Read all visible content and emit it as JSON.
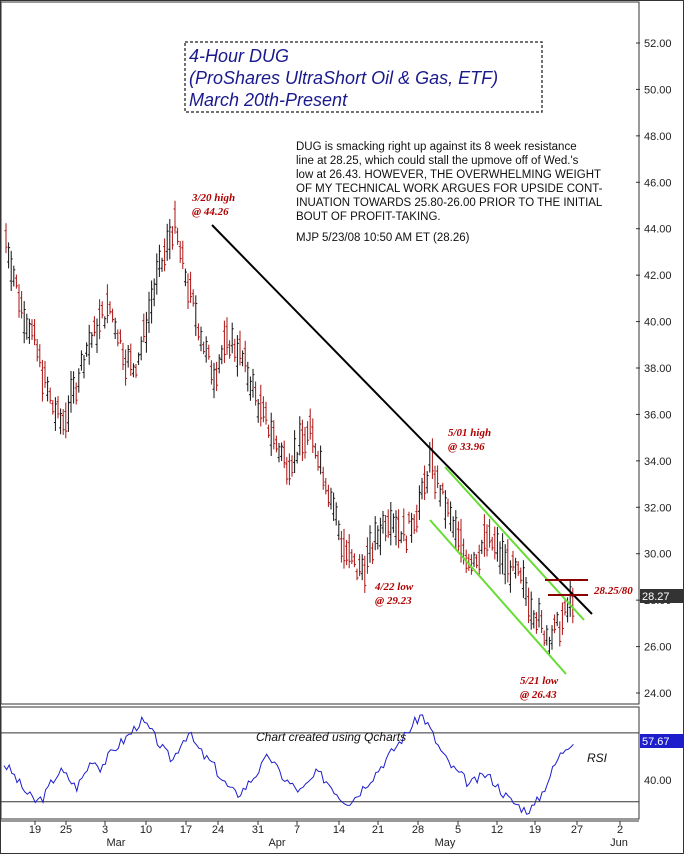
{
  "chart_data": [
    {
      "type": "candlestick",
      "title": [
        "4-Hour DUG",
        "(ProShares UltraShort Oil & Gas, ETF)",
        "March 20th-Present"
      ],
      "y_ticks": [
        "24.00",
        "26.00",
        "28.00",
        "30.00",
        "32.00",
        "34.00",
        "36.00",
        "38.00",
        "40.00",
        "42.00",
        "44.00",
        "46.00",
        "48.00",
        "50.00",
        "52.00"
      ],
      "ylim": [
        23.0,
        53.0
      ],
      "x_day_ticks": [
        "19",
        "25",
        "3",
        "10",
        "17",
        "24",
        "31",
        "7",
        "14",
        "21",
        "28",
        "5",
        "12",
        "19",
        "27",
        "2"
      ],
      "x_month_labels": [
        "Mar",
        "Apr",
        "May",
        "Jun"
      ],
      "price_series_estimate": [
        43.6,
        42.0,
        40.6,
        39.8,
        38.6,
        37.2,
        36.2,
        35.6,
        36.4,
        37.6,
        38.8,
        39.4,
        40.2,
        40.6,
        39.6,
        38.4,
        38.0,
        39.0,
        40.6,
        42.0,
        43.0,
        44.26,
        42.6,
        41.2,
        40.0,
        38.6,
        37.8,
        38.6,
        39.2,
        38.8,
        38.0,
        37.0,
        36.0,
        35.4,
        34.6,
        34.0,
        34.2,
        34.8,
        35.2,
        34.4,
        33.2,
        32.0,
        30.4,
        29.8,
        29.23,
        29.6,
        30.4,
        31.2,
        31.8,
        31.2,
        30.8,
        31.6,
        32.4,
        33.96,
        33.0,
        32.0,
        31.0,
        30.2,
        29.8,
        30.0,
        30.6,
        30.4,
        29.8,
        29.4,
        29.0,
        28.4,
        27.6,
        26.8,
        26.43,
        26.8,
        27.4,
        28.26
      ],
      "current_price": "28.27",
      "resistance_label": "28.25/80",
      "annotations": [
        {
          "text": [
            "3/20 high",
            "@ 44.26"
          ],
          "x_label": "3/20",
          "y": 44.26
        },
        {
          "text": [
            "5/01 high",
            "@ 33.96"
          ],
          "x_label": "5/01",
          "y": 33.96
        },
        {
          "text": [
            "4/22 low",
            "@ 29.23"
          ],
          "x_label": "4/22",
          "y": 29.23
        },
        {
          "text": [
            "5/21 low",
            "@ 26.43"
          ],
          "x_label": "5/21",
          "y": 26.43
        }
      ],
      "commentary": [
        "DUG is smacking right up against its 8 week resistance",
        "line at 28.25, which could stall the upmove off of Wed.'s",
        "low at 26.43. HOWEVER, THE OVERWHELMING WEIGHT",
        "OF MY TECHNICAL WORK ARGUES FOR UPSIDE CONT-",
        "INUATION TOWARDS 25.80-26.00 PRIOR TO THE INITIAL",
        "BOUT OF PROFIT-TAKING.",
        "MJP  5/23/08  10:50 AM ET  (28.26)"
      ]
    },
    {
      "type": "line",
      "name": "RSI",
      "credit": "Chart created using Qcharts",
      "y_ticks": [
        "40.00"
      ],
      "ylim": [
        20,
        85
      ],
      "current_value": "57.67",
      "rsi_series_estimate": [
        52,
        47,
        40,
        34,
        30,
        33,
        42,
        48,
        44,
        38,
        46,
        55,
        50,
        56,
        62,
        66,
        71,
        77,
        73,
        66,
        59,
        54,
        64,
        70,
        62,
        56,
        52,
        44,
        38,
        34,
        38,
        44,
        50,
        57,
        49,
        43,
        39,
        36,
        41,
        47,
        43,
        38,
        32,
        30,
        34,
        40,
        45,
        51,
        57,
        63,
        69,
        75,
        81,
        73,
        63,
        55,
        49,
        45,
        40,
        43,
        46,
        42,
        36,
        31,
        28,
        25,
        27,
        35,
        45,
        55,
        62,
        66
      ]
    }
  ],
  "colors": {
    "trendline": "#000000",
    "channel": "#66dd33",
    "resistance": "#8b0000",
    "annotation": "#b00000",
    "rsi": "#1d1dcc",
    "title": "#1a1a8c",
    "axis_badge_price": "#333333",
    "axis_badge_rsi": "#1d1dcc"
  }
}
